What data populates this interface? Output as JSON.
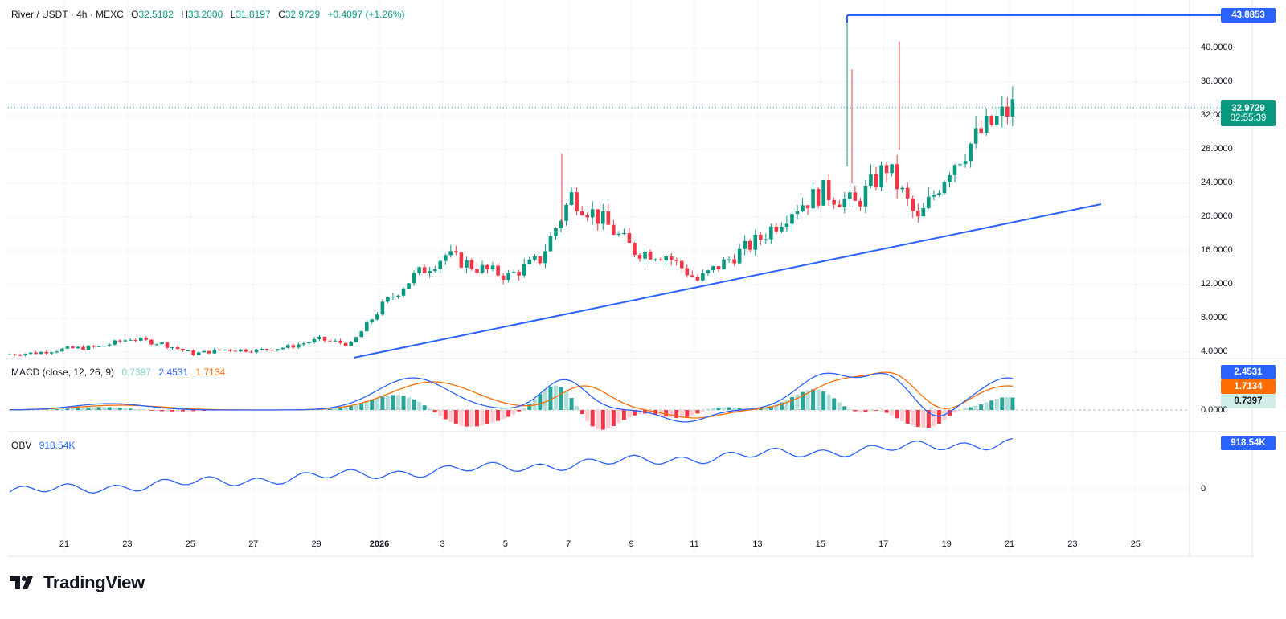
{
  "header": {
    "symbol": "River / USDT · 4h · MEXC",
    "o_label": "O",
    "o_val": "32.5182",
    "h_label": "H",
    "h_val": "33.2000",
    "l_label": "L",
    "l_val": "31.8197",
    "c_label": "C",
    "c_val": "32.9729",
    "change": "+0.4097 (+1.26%)"
  },
  "price_axis": {
    "ticks": [
      "40.0000",
      "36.0000",
      "32.0000",
      "28.0000",
      "24.0000",
      "20.0000",
      "16.0000",
      "12.0000",
      "8.0000",
      "4.0000"
    ],
    "tick_values": [
      40,
      36,
      32,
      28,
      24,
      20,
      16,
      12,
      8,
      4
    ]
  },
  "tags": {
    "high_line": "43.8853",
    "last_price": "32.9729",
    "countdown": "02:55:39",
    "macd": "2.4531",
    "signal": "1.7134",
    "hist": "0.7397",
    "macd_zero": "0.0000",
    "obv": "918.54K",
    "obv_zero": "0"
  },
  "macd_legend": {
    "title": "MACD (close, 12, 26, 9)",
    "hist": "0.7397",
    "macd": "2.4531",
    "signal": "1.7134"
  },
  "obv_legend": {
    "title": "OBV",
    "value": "918.54K"
  },
  "time_axis": [
    "21",
    "23",
    "25",
    "27",
    "29",
    "2026",
    "3",
    "5",
    "7",
    "9",
    "11",
    "13",
    "15",
    "17",
    "19",
    "21",
    "23",
    "25"
  ],
  "colors": {
    "up": "#089981",
    "down": "#f23645",
    "macd": "#2962ff",
    "signal": "#ff6d00",
    "trend": "#2962ff"
  },
  "brand": {
    "name": "TradingView"
  },
  "chart_data": {
    "type": "candlestick",
    "timeframe": "4h",
    "last_close": 32.9729,
    "day_closes": [
      {
        "day": "20",
        "close": 3.9
      },
      {
        "day": "21",
        "close": 4.4
      },
      {
        "day": "22",
        "close": 4.6
      },
      {
        "day": "23",
        "close": 5.6
      },
      {
        "day": "24",
        "close": 5.0
      },
      {
        "day": "25",
        "close": 3.8
      },
      {
        "day": "26",
        "close": 4.3
      },
      {
        "day": "27",
        "close": 4.2
      },
      {
        "day": "28",
        "close": 4.6
      },
      {
        "day": "29",
        "close": 5.5
      },
      {
        "day": "30",
        "close": 4.9
      },
      {
        "day": "31",
        "close": 9.5
      },
      {
        "day": "Jan 1",
        "close": 13.0
      },
      {
        "day": "2",
        "close": 15.5
      },
      {
        "day": "3",
        "close": 14.0
      },
      {
        "day": "4",
        "close": 13.0
      },
      {
        "day": "5",
        "close": 15.0
      },
      {
        "day": "6",
        "close": 22.5
      },
      {
        "day": "7",
        "close": 19.5
      },
      {
        "day": "8",
        "close": 16.0
      },
      {
        "day": "9",
        "close": 15.5
      },
      {
        "day": "10",
        "close": 12.5
      },
      {
        "day": "11",
        "close": 15.0
      },
      {
        "day": "12",
        "close": 17.5
      },
      {
        "day": "13",
        "close": 21.0
      },
      {
        "day": "14",
        "close": 23.0
      },
      {
        "day": "15",
        "close": 21.5
      },
      {
        "day": "16",
        "close": 26.0
      },
      {
        "day": "17",
        "close": 19.5
      },
      {
        "day": "18",
        "close": 26.0
      },
      {
        "day": "19",
        "close": 30.0
      },
      {
        "day": "20",
        "close": 32.97
      }
    ],
    "ylim": [
      4,
      44
    ],
    "annotations": {
      "horizontal_high": 43.8853
    }
  }
}
